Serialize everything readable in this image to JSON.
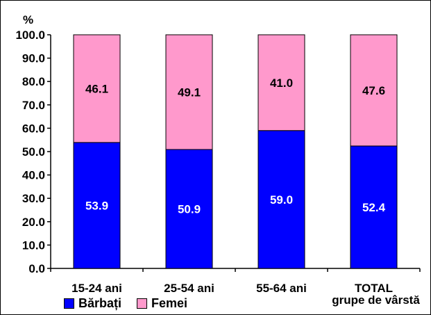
{
  "chart_data": {
    "type": "bar",
    "stacked": true,
    "unit_label": "%",
    "categories": [
      [
        "15-24 ani"
      ],
      [
        "25-54 ani"
      ],
      [
        "55-64 ani"
      ],
      [
        "TOTAL",
        "grupe de vârstă"
      ]
    ],
    "series": [
      {
        "name": "Bărbați",
        "color": "#0000ff",
        "values": [
          53.9,
          50.9,
          59.0,
          52.4
        ],
        "labels": [
          "53.9",
          "50.9",
          "59.0",
          "52.4"
        ],
        "label_color": "#ffffff"
      },
      {
        "name": "Femei",
        "color": "#ff99cc",
        "values": [
          46.1,
          49.1,
          41.0,
          47.6
        ],
        "labels": [
          "46.1",
          "49.1",
          "41.0",
          "47.6"
        ],
        "label_color": "#000000"
      }
    ],
    "ylim": [
      0,
      100
    ],
    "yticks": [
      "0.0",
      "10.0",
      "20.0",
      "30.0",
      "40.0",
      "50.0",
      "60.0",
      "70.0",
      "80.0",
      "90.0",
      "100.0"
    ],
    "grid": false,
    "legend_position": "bottom-left"
  }
}
